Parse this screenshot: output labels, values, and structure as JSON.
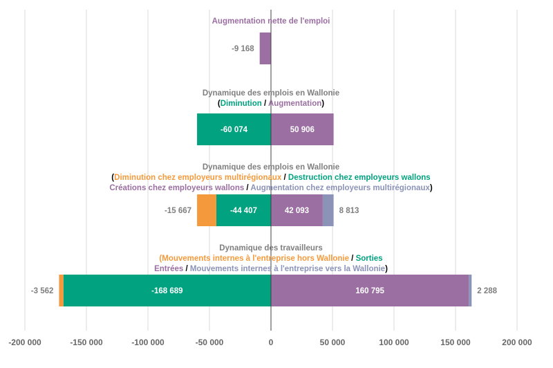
{
  "chart_data": {
    "type": "bar",
    "orientation": "horizontal",
    "stacked": true,
    "xlim": [
      -200000,
      200000
    ],
    "x_ticks": [
      -200000,
      -150000,
      -100000,
      -50000,
      0,
      50000,
      100000,
      150000,
      200000
    ],
    "x_tick_labels": [
      "-200 000",
      "-150 000",
      "-100 000",
      "-50 000",
      "0",
      "50 000",
      "100 000",
      "150 000",
      "200 000"
    ],
    "grid": true,
    "colors": {
      "purple": "#9b6fa2",
      "green": "#00a27f",
      "orange": "#f59a3c",
      "slate": "#8c93b9",
      "title_gray": "#7f7f7f",
      "label_gray": "#7f7f7f"
    },
    "groups": [
      {
        "title_lines": [
          [
            {
              "text": "Augmentation nette de l'emploi",
              "color": "purple"
            }
          ]
        ],
        "segments": [
          {
            "start": 0,
            "end": -9168,
            "color": "purple",
            "label": "-9 168",
            "label_pos": "outside-left"
          }
        ]
      },
      {
        "title_lines": [
          [
            {
              "text": "Dynamique des emplois en Wallonie",
              "color": "title_gray"
            }
          ],
          [
            {
              "text": "(",
              "color": "black"
            },
            {
              "text": "Diminution",
              "color": "green"
            },
            {
              "text": " / ",
              "color": "black"
            },
            {
              "text": "Augmentation",
              "color": "purple"
            },
            {
              "text": ")",
              "color": "black"
            }
          ]
        ],
        "segments": [
          {
            "start": 0,
            "end": -60074,
            "color": "green",
            "label": "-60 074",
            "label_pos": "inside"
          },
          {
            "start": 0,
            "end": 50906,
            "color": "purple",
            "label": "50 906",
            "label_pos": "inside"
          }
        ]
      },
      {
        "title_lines": [
          [
            {
              "text": "Dynamique des emplois en Wallonie",
              "color": "title_gray"
            }
          ],
          [
            {
              "text": "(",
              "color": "black"
            },
            {
              "text": "Diminution chez employeurs multirégionaux",
              "color": "orange"
            },
            {
              "text": " / ",
              "color": "black"
            },
            {
              "text": "Destruction chez employeurs wallons",
              "color": "green"
            }
          ],
          [
            {
              "text": "Créations chez employeurs wallons",
              "color": "purple"
            },
            {
              "text": " / ",
              "color": "black"
            },
            {
              "text": "Augmentation chez employeurs multirégionaux",
              "color": "slate"
            },
            {
              "text": ")",
              "color": "black"
            }
          ]
        ],
        "segments": [
          {
            "start": 0,
            "end": -44407,
            "color": "green",
            "label": "-44 407",
            "label_pos": "inside"
          },
          {
            "start": -44407,
            "end": -60074,
            "color": "orange",
            "label": "-15 667",
            "label_pos": "outside-left"
          },
          {
            "start": 0,
            "end": 42093,
            "color": "purple",
            "label": "42 093",
            "label_pos": "inside"
          },
          {
            "start": 42093,
            "end": 50906,
            "color": "slate",
            "label": "8 813",
            "label_pos": "outside-right"
          }
        ]
      },
      {
        "title_lines": [
          [
            {
              "text": "Dynamique des travailleurs",
              "color": "title_gray"
            }
          ],
          [
            {
              "text": "(Mouvements internes à l'entreprise hors Wallonie",
              "color": "orange"
            },
            {
              "text": " / ",
              "color": "black"
            },
            {
              "text": "Sorties",
              "color": "green"
            }
          ],
          [
            {
              "text": "Entrées",
              "color": "purple"
            },
            {
              "text": " / ",
              "color": "black"
            },
            {
              "text": "Mouvements internes à l'entreprise vers la Wallonie",
              "color": "slate"
            },
            {
              "text": ")",
              "color": "black"
            }
          ]
        ],
        "segments": [
          {
            "start": 0,
            "end": -168689,
            "color": "green",
            "label": "-168 689",
            "label_pos": "inside"
          },
          {
            "start": -168689,
            "end": -172251,
            "color": "orange",
            "label": "-3 562",
            "label_pos": "outside-left"
          },
          {
            "start": 0,
            "end": 160795,
            "color": "purple",
            "label": "160 795",
            "label_pos": "inside"
          },
          {
            "start": 160795,
            "end": 163083,
            "color": "slate",
            "label": "2 288",
            "label_pos": "outside-right"
          }
        ]
      }
    ]
  }
}
